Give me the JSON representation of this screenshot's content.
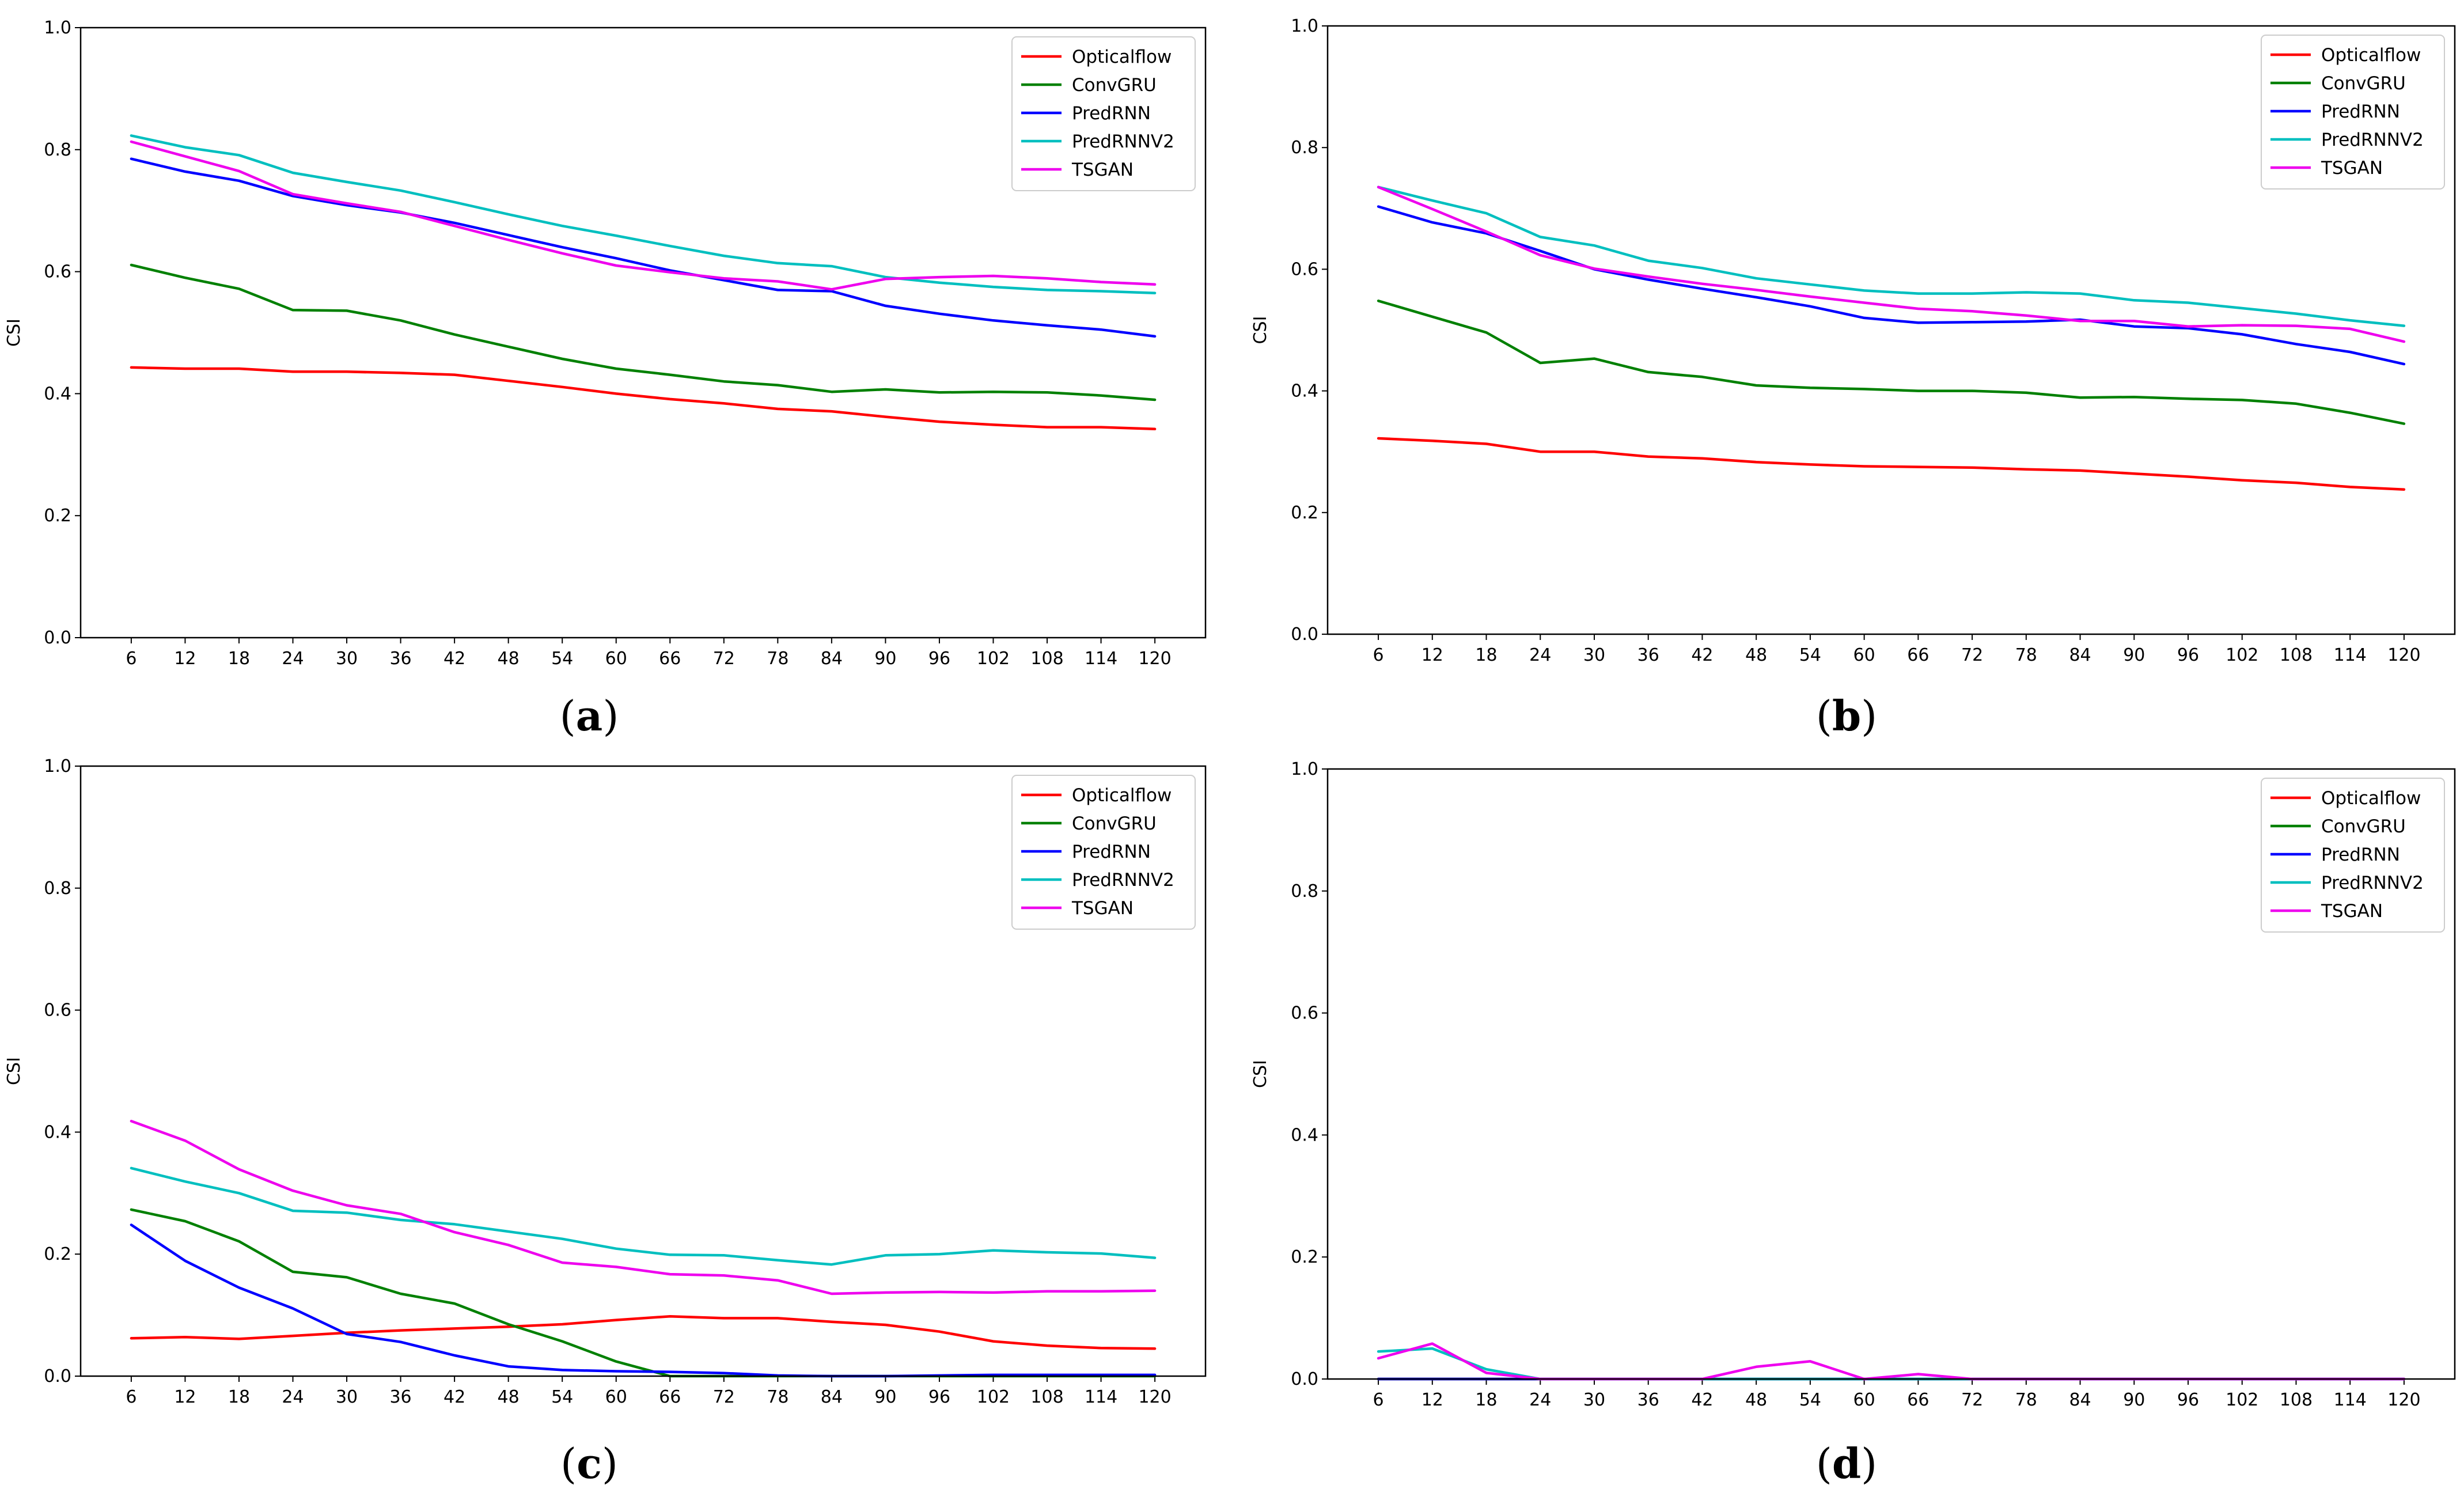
{
  "chart_data": [
    {
      "type": "line",
      "panel_label": "a",
      "ylabel": "CSI",
      "xlabel": "",
      "ylim": [
        0,
        1.0
      ],
      "y_ticks": [
        "0.0",
        "0.2",
        "0.4",
        "0.6",
        "0.8",
        "1.0"
      ],
      "legend_position": "top-right",
      "categories": [
        "6",
        "12",
        "18",
        "24",
        "30",
        "36",
        "42",
        "48",
        "54",
        "60",
        "66",
        "72",
        "78",
        "84",
        "90",
        "96",
        "102",
        "108",
        "114",
        "120"
      ],
      "series": [
        {
          "name": "Opticalflow",
          "color": "#ff0000",
          "values": [
            0.443,
            0.441,
            0.441,
            0.436,
            0.436,
            0.434,
            0.431,
            0.421,
            0.411,
            0.4,
            0.391,
            0.384,
            0.375,
            0.371,
            0.362,
            0.354,
            0.349,
            0.345,
            0.345,
            0.342
          ]
        },
        {
          "name": "ConvGRU",
          "color": "#008000",
          "values": [
            0.611,
            0.59,
            0.572,
            0.537,
            0.536,
            0.52,
            0.497,
            0.477,
            0.457,
            0.441,
            0.431,
            0.42,
            0.414,
            0.403,
            0.407,
            0.402,
            0.403,
            0.402,
            0.397,
            0.39
          ]
        },
        {
          "name": "PredRNN",
          "color": "#0000ff",
          "values": [
            0.785,
            0.764,
            0.749,
            0.724,
            0.709,
            0.697,
            0.68,
            0.66,
            0.64,
            0.622,
            0.602,
            0.586,
            0.57,
            0.568,
            0.544,
            0.531,
            0.52,
            0.512,
            0.505,
            0.494
          ]
        },
        {
          "name": "PredRNNV2",
          "color": "#00bfbf",
          "values": [
            0.823,
            0.804,
            0.791,
            0.762,
            0.747,
            0.733,
            0.714,
            0.694,
            0.675,
            0.659,
            0.642,
            0.626,
            0.614,
            0.609,
            0.591,
            0.582,
            0.575,
            0.57,
            0.568,
            0.565
          ]
        },
        {
          "name": "TSGAN",
          "color": "#ee00ee",
          "values": [
            0.813,
            0.789,
            0.765,
            0.727,
            0.712,
            0.698,
            0.675,
            0.652,
            0.63,
            0.61,
            0.599,
            0.589,
            0.584,
            0.571,
            0.588,
            0.591,
            0.593,
            0.589,
            0.583,
            0.579
          ]
        }
      ]
    },
    {
      "type": "line",
      "panel_label": "b",
      "ylabel": "CSI",
      "xlabel": "",
      "ylim": [
        0,
        1.0
      ],
      "y_ticks": [
        "0.0",
        "0.2",
        "0.4",
        "0.6",
        "0.8",
        "1.0"
      ],
      "legend_position": "top-right",
      "categories": [
        "6",
        "12",
        "18",
        "24",
        "30",
        "36",
        "42",
        "48",
        "54",
        "60",
        "66",
        "72",
        "78",
        "84",
        "90",
        "96",
        "102",
        "108",
        "114",
        "120"
      ],
      "series": [
        {
          "name": "Opticalflow",
          "color": "#ff0000",
          "values": [
            0.322,
            0.318,
            0.313,
            0.3,
            0.3,
            0.292,
            0.289,
            0.283,
            0.279,
            0.276,
            0.275,
            0.274,
            0.271,
            0.269,
            0.264,
            0.259,
            0.253,
            0.249,
            0.242,
            0.238
          ]
        },
        {
          "name": "ConvGRU",
          "color": "#008000",
          "values": [
            0.548,
            0.522,
            0.496,
            0.446,
            0.453,
            0.431,
            0.423,
            0.409,
            0.405,
            0.403,
            0.4,
            0.4,
            0.397,
            0.389,
            0.39,
            0.387,
            0.385,
            0.379,
            0.364,
            0.346
          ]
        },
        {
          "name": "PredRNN",
          "color": "#0000ff",
          "values": [
            0.703,
            0.677,
            0.659,
            0.63,
            0.6,
            0.583,
            0.568,
            0.554,
            0.539,
            0.52,
            0.512,
            0.513,
            0.514,
            0.517,
            0.506,
            0.503,
            0.493,
            0.477,
            0.464,
            0.444
          ]
        },
        {
          "name": "PredRNNV2",
          "color": "#00bfbf",
          "values": [
            0.735,
            0.713,
            0.692,
            0.653,
            0.639,
            0.614,
            0.602,
            0.585,
            0.575,
            0.565,
            0.56,
            0.56,
            0.562,
            0.56,
            0.549,
            0.545,
            0.536,
            0.527,
            0.516,
            0.507
          ]
        },
        {
          "name": "TSGAN",
          "color": "#ee00ee",
          "values": [
            0.735,
            0.699,
            0.662,
            0.623,
            0.601,
            0.588,
            0.576,
            0.566,
            0.555,
            0.545,
            0.535,
            0.531,
            0.524,
            0.515,
            0.515,
            0.506,
            0.508,
            0.507,
            0.502,
            0.481
          ]
        }
      ]
    },
    {
      "type": "line",
      "panel_label": "c",
      "ylabel": "CSI",
      "xlabel": "",
      "ylim": [
        0,
        1.0
      ],
      "y_ticks": [
        "0.0",
        "0.2",
        "0.4",
        "0.6",
        "0.8",
        "1.0"
      ],
      "legend_position": "top-right",
      "categories": [
        "6",
        "12",
        "18",
        "24",
        "30",
        "36",
        "42",
        "48",
        "54",
        "60",
        "66",
        "72",
        "78",
        "84",
        "90",
        "96",
        "102",
        "108",
        "114",
        "120"
      ],
      "series": [
        {
          "name": "Opticalflow",
          "color": "#ff0000",
          "values": [
            0.062,
            0.064,
            0.061,
            0.066,
            0.071,
            0.075,
            0.078,
            0.081,
            0.085,
            0.092,
            0.098,
            0.095,
            0.095,
            0.089,
            0.084,
            0.073,
            0.057,
            0.05,
            0.046,
            0.045
          ]
        },
        {
          "name": "ConvGRU",
          "color": "#008000",
          "values": [
            0.273,
            0.254,
            0.221,
            0.171,
            0.162,
            0.135,
            0.119,
            0.085,
            0.057,
            0.024,
            0.0,
            0.0,
            0.0,
            0.0,
            0.0,
            0.0,
            0.0,
            0.0,
            0.0,
            0.0
          ]
        },
        {
          "name": "PredRNN",
          "color": "#0000ff",
          "values": [
            0.248,
            0.189,
            0.145,
            0.111,
            0.069,
            0.056,
            0.034,
            0.016,
            0.01,
            0.008,
            0.007,
            0.005,
            0.001,
            0.0,
            0.0,
            0.001,
            0.002,
            0.002,
            0.002,
            0.002
          ]
        },
        {
          "name": "PredRNNV2",
          "color": "#00bfbf",
          "values": [
            0.341,
            0.319,
            0.3,
            0.271,
            0.268,
            0.256,
            0.249,
            0.237,
            0.225,
            0.209,
            0.199,
            0.198,
            0.19,
            0.183,
            0.198,
            0.2,
            0.206,
            0.203,
            0.201,
            0.194
          ]
        },
        {
          "name": "TSGAN",
          "color": "#ee00ee",
          "values": [
            0.418,
            0.386,
            0.339,
            0.304,
            0.28,
            0.266,
            0.236,
            0.215,
            0.186,
            0.179,
            0.167,
            0.165,
            0.157,
            0.135,
            0.137,
            0.138,
            0.137,
            0.139,
            0.139,
            0.14
          ]
        }
      ]
    },
    {
      "type": "line",
      "panel_label": "d",
      "ylabel": "CSI",
      "xlabel": "",
      "ylim": [
        0,
        1.0
      ],
      "y_ticks": [
        "0.0",
        "0.2",
        "0.4",
        "0.6",
        "0.8",
        "1.0"
      ],
      "legend_position": "top-right",
      "categories": [
        "6",
        "12",
        "18",
        "24",
        "30",
        "36",
        "42",
        "48",
        "54",
        "60",
        "66",
        "72",
        "78",
        "84",
        "90",
        "96",
        "102",
        "108",
        "114",
        "120"
      ],
      "series": [
        {
          "name": "Opticalflow",
          "color": "#ff0000",
          "values": [
            0,
            0,
            0,
            0,
            0,
            0,
            0,
            0,
            0,
            0,
            0,
            0,
            0,
            0,
            0,
            0,
            0,
            0,
            0,
            0
          ]
        },
        {
          "name": "ConvGRU",
          "color": "#008000",
          "values": [
            0,
            0,
            0,
            0,
            0,
            0,
            0,
            0,
            0,
            0,
            0,
            0,
            0,
            0,
            0,
            0,
            0,
            0,
            0,
            0
          ]
        },
        {
          "name": "PredRNN",
          "color": "#0000ff",
          "values": [
            0,
            0,
            0,
            0,
            0,
            0,
            0,
            0,
            0,
            0,
            0,
            0,
            0,
            0,
            0,
            0,
            0,
            0,
            0,
            0
          ]
        },
        {
          "name": "PredRNNV2",
          "color": "#00bfbf",
          "values": [
            0.045,
            0.05,
            0.016,
            0.0,
            0.0,
            0.0,
            0.0,
            0.0,
            0.0,
            0.0,
            0.0,
            0.0,
            0.0,
            0.0,
            0.0,
            0.0,
            0.0,
            0.0,
            0.0,
            0.0
          ]
        },
        {
          "name": "TSGAN",
          "color": "#ee00ee",
          "values": [
            0.034,
            0.058,
            0.01,
            0.0,
            0.0,
            0.0,
            0.0,
            0.02,
            0.029,
            0.0,
            0.008,
            0.0,
            0.0,
            0.0,
            0.0,
            0.0,
            0.0,
            0.0,
            0.0,
            0.0
          ]
        }
      ]
    }
  ]
}
